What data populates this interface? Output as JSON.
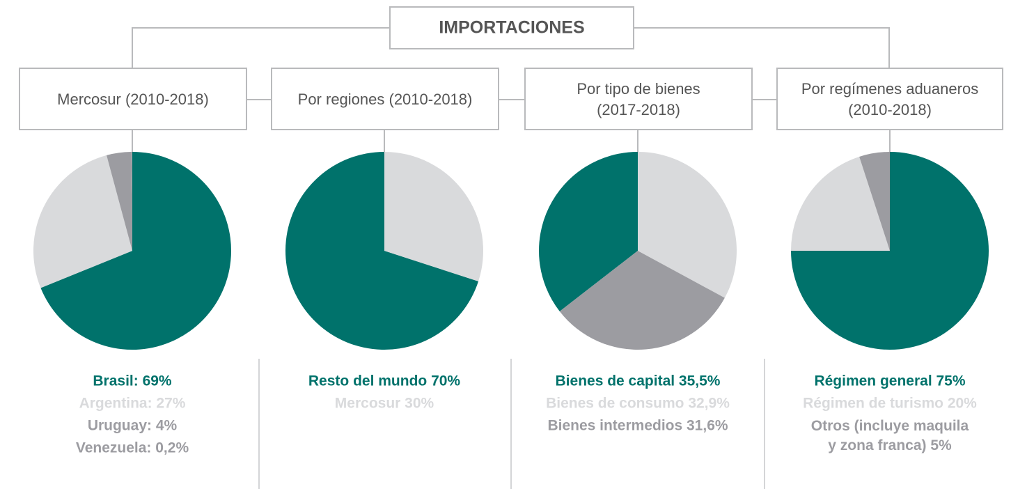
{
  "title": "IMPORTACIONES",
  "chart_data": [
    {
      "type": "pie",
      "title": "Mercosur (2010-2018)",
      "first_slice_side": "right",
      "labels": [
        "Brasil: 69%",
        "Argentina: 27%",
        "Uruguay: 4%",
        "Venezuela: 0,2%"
      ],
      "values": [
        69,
        27,
        4,
        0.2
      ],
      "colors": [
        "#00726b",
        "#d9dadc",
        "#9c9ca1",
        "#9c9ca1"
      ]
    },
    {
      "type": "pie",
      "title": "Por regiones (2010-2018)",
      "first_slice_side": "left",
      "labels": [
        "Resto del mundo 70%",
        "Mercosur 30%"
      ],
      "values": [
        70,
        30
      ],
      "colors": [
        "#00726b",
        "#d9dadc"
      ]
    },
    {
      "type": "pie",
      "title": "Por tipo de bienes\n(2017-2018)",
      "first_slice_side": "left",
      "labels": [
        "Bienes de capital 35,5%",
        "Bienes de consumo 32,9%",
        "Bienes intermedios 31,6%"
      ],
      "values": [
        35.5,
        32.9,
        31.6
      ],
      "colors": [
        "#00726b",
        "#d9dadc",
        "#9c9ca1"
      ]
    },
    {
      "type": "pie",
      "title": "Por regímenes aduaneros\n(2010-2018)",
      "first_slice_side": "right",
      "labels": [
        "Régimen general 75%",
        "Régimen de turismo 20%",
        "Otros (incluye maquila\ny zona franca) 5%"
      ],
      "values": [
        75,
        20,
        5
      ],
      "colors": [
        "#00726b",
        "#d9dadc",
        "#9c9ca1"
      ]
    }
  ]
}
